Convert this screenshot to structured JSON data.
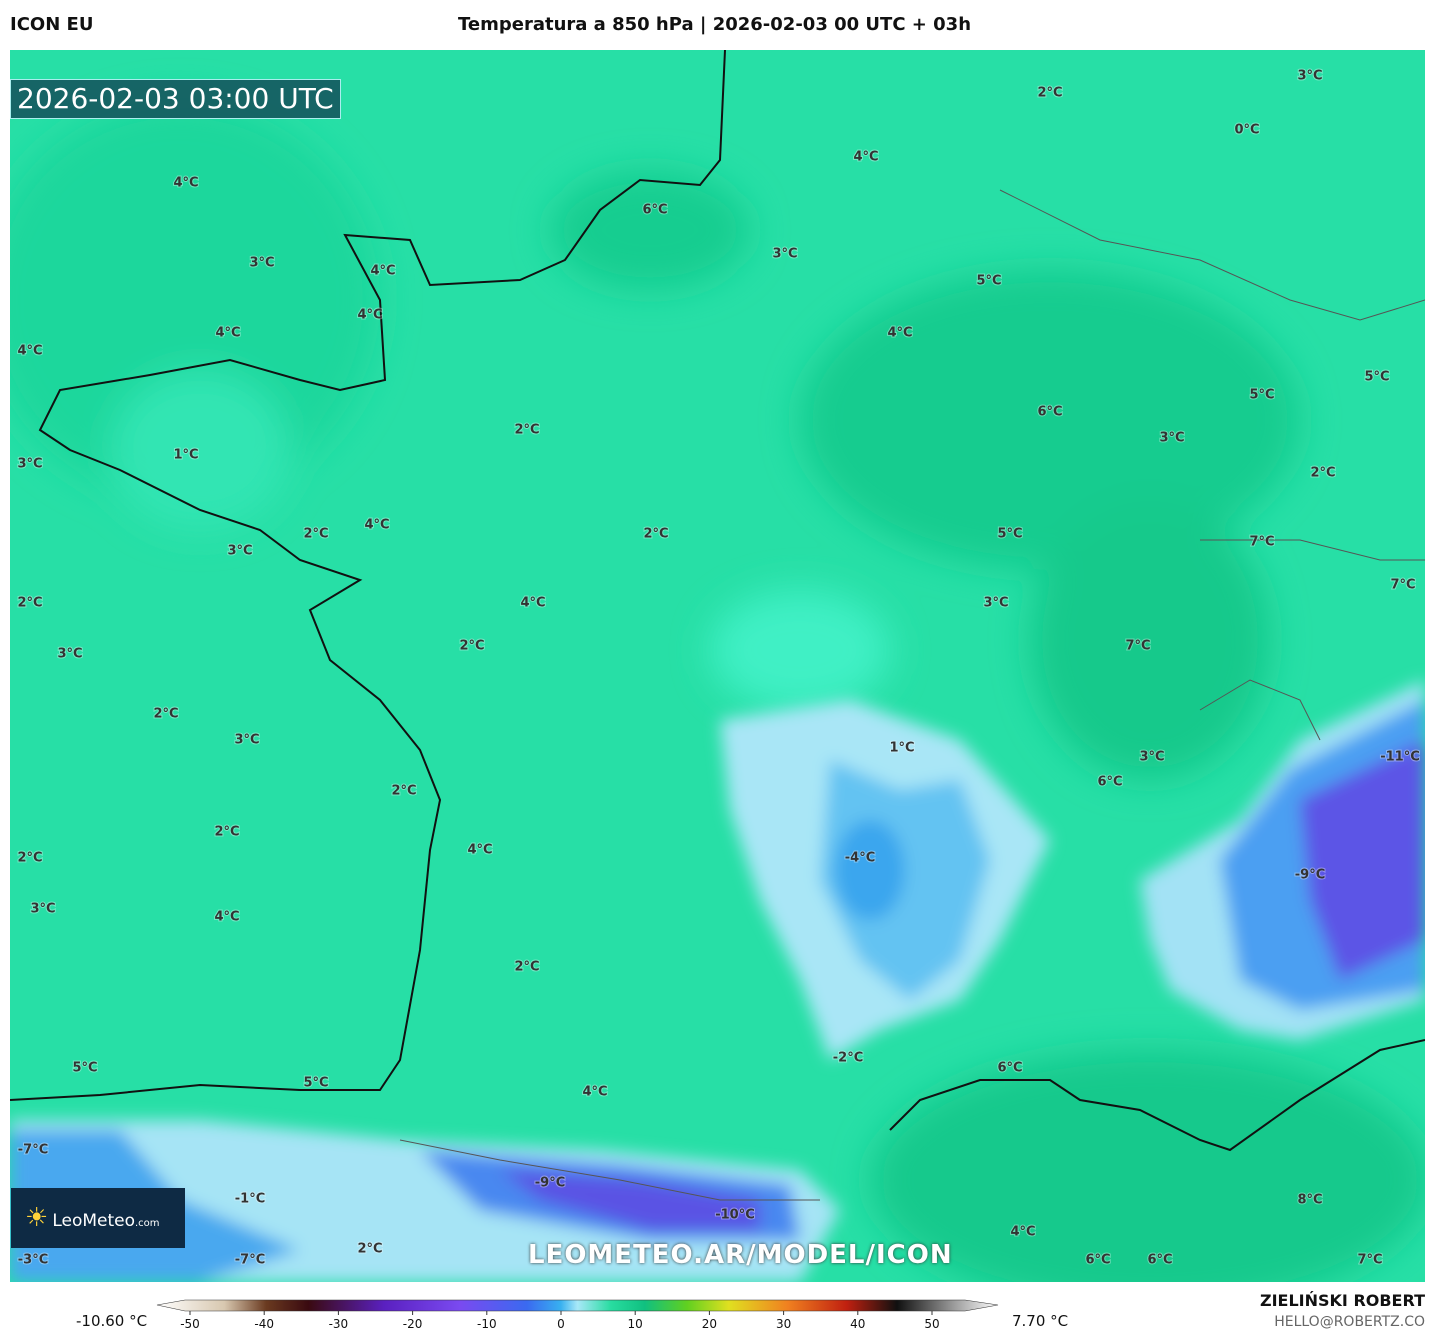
{
  "header": {
    "model": "ICON EU",
    "title": "Temperatura a 850 hPa | 2026-02-03 00 UTC + 03h"
  },
  "timestamp": "2026-02-03 03:00 UTC",
  "logo": {
    "name": "LeoMeteo",
    "suffix": ".com"
  },
  "watermark": "LEOMETEO.AR/MODEL/ICON",
  "map": {
    "labels": [
      "3°C",
      "2°C",
      "0°C",
      "4°C",
      "4°C",
      "6°C",
      "3°C",
      "3°C",
      "4°C",
      "5°C",
      "4°C",
      "4°C",
      "4°C",
      "4°C",
      "5°C",
      "5°C",
      "6°C",
      "2°C",
      "3°C",
      "1°C",
      "3°C",
      "2°C",
      "4°C",
      "2°C",
      "2°C",
      "5°C",
      "7°C",
      "3°C",
      "7°C",
      "2°C",
      "4°C",
      "3°C",
      "2°C",
      "7°C",
      "3°C",
      "2°C",
      "3°C",
      "1°C",
      "3°C",
      "-11°C",
      "6°C",
      "2°C",
      "2°C",
      "4°C",
      "-4°C",
      "2°C",
      "-9°C",
      "3°C",
      "4°C",
      "2°C",
      "-2°C",
      "6°C",
      "5°C",
      "5°C",
      "4°C",
      "-7°C",
      "-9°C",
      "-1°C",
      "8°C",
      "-10°C",
      "4°C",
      "2°C",
      "-3°C",
      "-7°C",
      "6°C",
      "6°C",
      "7°C"
    ]
  },
  "colorbar": {
    "min_label": "-10.60 °C",
    "max_label": "7.70 °C",
    "ticks": [
      -50,
      -40,
      -30,
      -20,
      -10,
      0,
      10,
      20,
      30,
      40,
      50
    ]
  },
  "author": {
    "name": "ZIELIŃSKI ROBERT",
    "email": "HELLO@ROBERTZ.CO"
  }
}
